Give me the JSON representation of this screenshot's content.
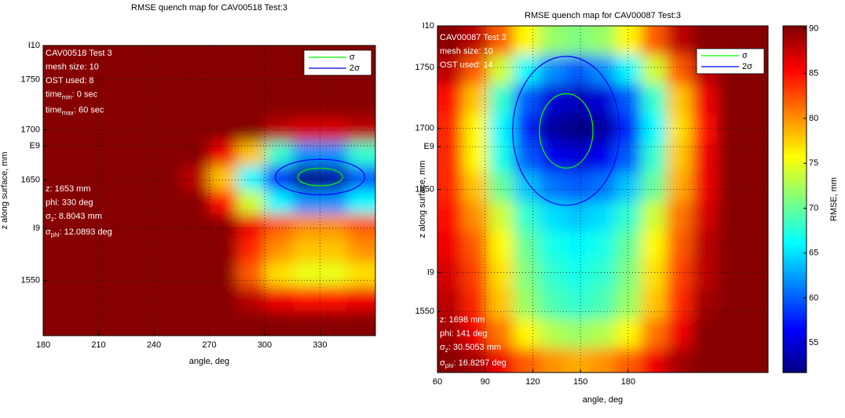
{
  "chart_data": [
    {
      "type": "heatmap",
      "title": "RMSE quench map for CAV00518 Test:3",
      "xlabel": "angle, deg",
      "ylabel": "z along surface, mm",
      "xlim": [
        180,
        360
      ],
      "xticks": [
        180,
        210,
        240,
        270,
        300,
        330
      ],
      "ylim": [
        1495,
        1784
      ],
      "yticks": [
        {
          "value": 1784,
          "label": "I10"
        },
        1750,
        1700,
        {
          "value": 1684,
          "label": "E9"
        },
        1650,
        {
          "value": 1602,
          "label": "I9"
        },
        1550
      ],
      "grid": true,
      "x": [
        187.5,
        202.5,
        217.5,
        232.5,
        247.5,
        262.5,
        277.5,
        292.5,
        307.5,
        322.5,
        337.5,
        352.5
      ],
      "y": [
        1772,
        1748,
        1724,
        1700,
        1676,
        1652,
        1628,
        1604,
        1580,
        1556,
        1532,
        1508
      ],
      "z": [
        [
          90,
          90,
          90,
          90,
          90,
          90,
          90,
          90,
          90,
          90,
          90,
          90
        ],
        [
          90,
          90,
          90,
          90,
          90,
          90,
          90,
          90,
          90,
          90,
          90,
          90
        ],
        [
          90,
          90,
          90,
          90,
          90,
          90,
          90,
          90,
          90,
          90,
          90,
          90
        ],
        [
          90,
          90,
          90,
          90,
          90,
          90,
          90,
          90,
          88,
          87,
          87,
          88
        ],
        [
          90,
          90,
          90,
          90,
          90,
          90,
          86,
          78,
          68,
          62,
          62,
          68
        ],
        [
          90,
          90,
          90,
          90,
          90,
          88,
          78,
          66,
          58,
          52,
          53,
          60
        ],
        [
          90,
          90,
          90,
          90,
          90,
          90,
          85,
          74,
          66,
          62,
          62,
          66
        ],
        [
          90,
          90,
          90,
          90,
          90,
          90,
          90,
          86,
          82,
          80,
          80,
          82
        ],
        [
          90,
          90,
          90,
          90,
          90,
          90,
          90,
          84,
          80,
          78,
          78,
          80
        ],
        [
          90,
          90,
          90,
          90,
          90,
          90,
          90,
          82,
          77,
          75,
          75,
          77
        ],
        [
          90,
          90,
          90,
          90,
          90,
          90,
          90,
          88,
          86,
          85,
          85,
          86
        ],
        [
          90,
          90,
          90,
          90,
          90,
          90,
          90,
          90,
          90,
          90,
          90,
          90
        ]
      ],
      "legend": [
        {
          "name": "σ",
          "color": "#00ff00"
        },
        {
          "name": "2σ",
          "color": "#0000ff"
        }
      ],
      "estimate": {
        "phi": 330,
        "z": 1653,
        "sigma_phi": 12.0893,
        "sigma_z": 8.8043
      },
      "info": [
        [
          "CAV00518 Test 3",
          "mesh size: 10",
          "OST used: 8",
          {
            "text": "time",
            "sub": "min",
            "rest": ": 0 sec"
          },
          {
            "text": "time",
            "sub": "max",
            "rest": ": 60 sec"
          }
        ],
        [
          "z: 1653 mm",
          "phi: 330 deg",
          {
            "text": "σ",
            "sub": "z",
            "rest": ": 8.8043 mm"
          },
          {
            "text": "σ",
            "sub": "phi",
            "rest": ": 12.0893 deg"
          }
        ]
      ]
    },
    {
      "type": "heatmap",
      "title": "RMSE quench map for CAV00087 Test:3",
      "xlabel": "angle, deg",
      "ylabel": "z along surface, mm",
      "xlim": [
        60,
        268
      ],
      "xticks": [
        60,
        90,
        120,
        150,
        180
      ],
      "ylim": [
        1500,
        1784
      ],
      "yticks": [
        {
          "value": 1784,
          "label": "I10"
        },
        1750,
        1700,
        {
          "value": 1685,
          "label": "E9"
        },
        1650,
        {
          "value": 1582,
          "label": "I9"
        },
        1550
      ],
      "grid": true,
      "x": [
        68,
        84,
        100,
        116,
        132,
        148,
        164,
        180,
        196,
        212,
        228,
        244,
        260
      ],
      "y": [
        1772,
        1748,
        1724,
        1700,
        1676,
        1652,
        1628,
        1604,
        1580,
        1556,
        1532,
        1508
      ],
      "z": [
        [
          90,
          88,
          82,
          76,
          72,
          71,
          72,
          76,
          82,
          88,
          90,
          90,
          90
        ],
        [
          88,
          82,
          74,
          66,
          62,
          60,
          62,
          66,
          74,
          82,
          88,
          90,
          90
        ],
        [
          85,
          78,
          68,
          60,
          55,
          54,
          55,
          60,
          68,
          78,
          86,
          90,
          90
        ],
        [
          84,
          76,
          66,
          58,
          53,
          52,
          53,
          58,
          66,
          77,
          85,
          90,
          90
        ],
        [
          84,
          76,
          67,
          60,
          56,
          55,
          56,
          60,
          68,
          78,
          86,
          90,
          90
        ],
        [
          84,
          78,
          70,
          64,
          61,
          60,
          61,
          64,
          70,
          79,
          86,
          90,
          90
        ],
        [
          85,
          80,
          74,
          68,
          65,
          64,
          65,
          68,
          74,
          81,
          87,
          90,
          90
        ],
        [
          86,
          82,
          76,
          70,
          67,
          66,
          67,
          70,
          76,
          82,
          88,
          90,
          90
        ],
        [
          87,
          83,
          77,
          71,
          68,
          67,
          68,
          71,
          77,
          83,
          88,
          90,
          90
        ],
        [
          88,
          84,
          78,
          72,
          69,
          68,
          69,
          72,
          78,
          84,
          89,
          90,
          90
        ],
        [
          89,
          86,
          81,
          76,
          73,
          72,
          73,
          76,
          81,
          86,
          90,
          90,
          90
        ],
        [
          90,
          89,
          86,
          82,
          80,
          79,
          80,
          82,
          86,
          89,
          90,
          90,
          90
        ]
      ],
      "legend": [
        {
          "name": "σ",
          "color": "#00ff00"
        },
        {
          "name": "2σ",
          "color": "#0000ff"
        }
      ],
      "estimate": {
        "phi": 141,
        "z": 1698,
        "sigma_phi": 16.8297,
        "sigma_z": 30.5053
      },
      "info": [
        [
          "CAV00087 Test 3",
          "mesh size: 10",
          "OST used: 14"
        ],
        [
          "z: 1698 mm",
          "phi: 141 deg",
          {
            "text": "σ",
            "sub": "z",
            "rest": ": 30.5053 mm"
          },
          {
            "text": "σ",
            "sub": "phi",
            "rest": ": 16.8297 deg"
          }
        ]
      ],
      "colorbar": {
        "label": "RMSE, mm",
        "lim": [
          51.7,
          90.3
        ],
        "ticks": [
          55,
          60,
          65,
          70,
          75,
          80,
          85,
          90
        ]
      }
    }
  ]
}
